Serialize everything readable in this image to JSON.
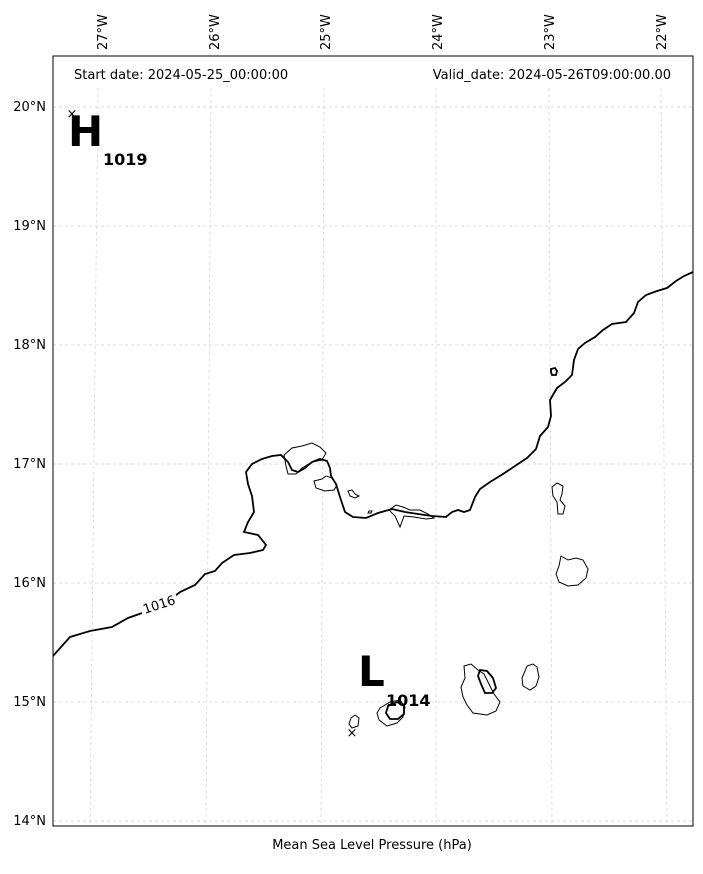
{
  "header": {
    "start_date": "Start date: 2024-05-25_00:00:00",
    "valid_date": "Valid_date: 2024-05-26T09:00:00.00"
  },
  "footer": {
    "xlabel": "Mean Sea Level Pressure (hPa)"
  },
  "longitude_ticks": [
    "27°W",
    "26°W",
    "25°W",
    "24°W",
    "23°W",
    "22°W"
  ],
  "latitude_ticks": [
    "20°N",
    "19°N",
    "18°N",
    "17°N",
    "16°N",
    "15°N",
    "14°N"
  ],
  "pressure_centers": {
    "high": {
      "letter": "H",
      "value": "1019"
    },
    "low": {
      "letter": "L",
      "value": "1014"
    }
  },
  "isobar_labels": [
    "1016"
  ],
  "colors": {
    "line": "#000000",
    "grid": "#d0d0d0",
    "land": "#ffffff"
  }
}
